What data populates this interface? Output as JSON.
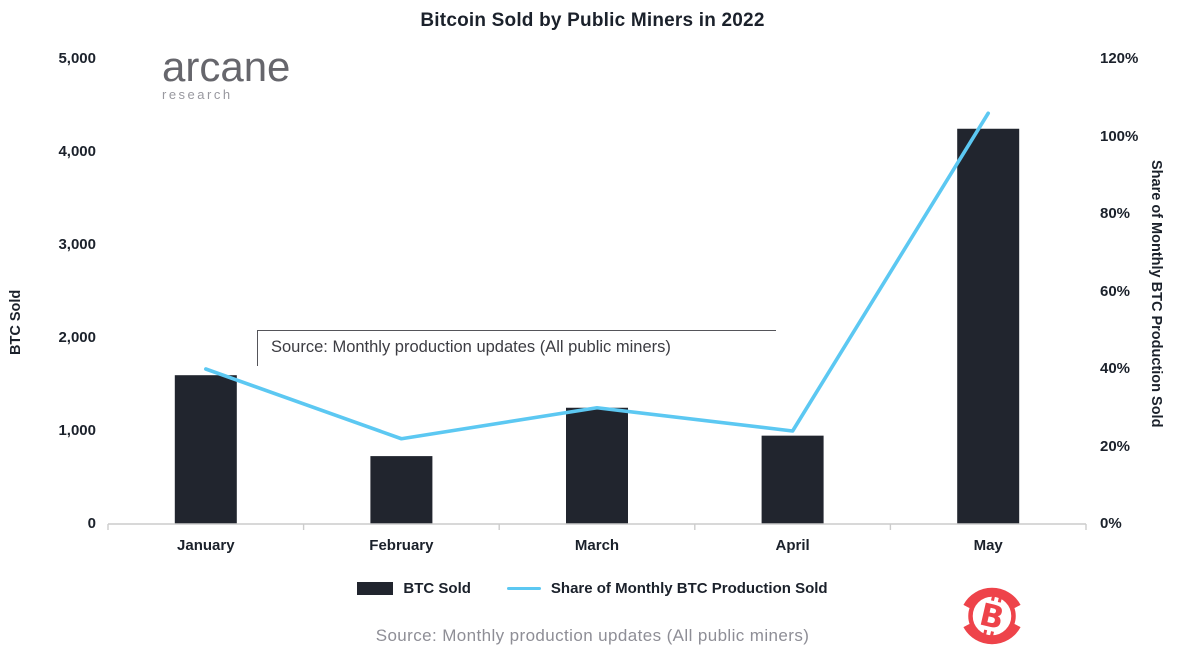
{
  "title": "Bitcoin Sold by Public Miners in 2022",
  "logo": {
    "name": "arcane",
    "sub": "research"
  },
  "annotation": {
    "text": "Source: Monthly production updates (All public miners)"
  },
  "footer": {
    "source": "Source: Monthly production updates (All public miners)"
  },
  "legend": [
    {
      "label": "BTC Sold",
      "type": "bar"
    },
    {
      "label": "Share of Monthly BTC Production Sold",
      "type": "line"
    }
  ],
  "icons": {
    "bitcoin_badge": "bitcoin-circular-arrows-icon"
  },
  "colors": {
    "bar": "#21252e",
    "line": "#5cc8f2",
    "text_dark": "#1b212b",
    "axis_grey": "#cccccc",
    "annotation_border": "#55555a",
    "annotation_text": "#3c3c42",
    "footer_grey": "#8e8e96",
    "logo_grey": "#66666c",
    "logo_sub_grey": "#98989f",
    "bitcoin_red": "#ee434a"
  },
  "chart_data": {
    "type": "bar+line combo",
    "title": "Bitcoin Sold by Public Miners in 2022",
    "categories": [
      "January",
      "February",
      "March",
      "April",
      "May"
    ],
    "series": [
      {
        "name": "BTC Sold",
        "type": "bar",
        "axis": "left",
        "values": [
          1600,
          730,
          1250,
          950,
          4250
        ]
      },
      {
        "name": "Share of Monthly BTC Production Sold",
        "type": "line",
        "axis": "right",
        "values": [
          40,
          22,
          30,
          24,
          106
        ]
      }
    ],
    "left_axis": {
      "label": "BTC Sold",
      "min": 0,
      "max": 5000,
      "ticks": [
        "5,000",
        "4,000",
        "3,000",
        "2,000",
        "1,000",
        "0"
      ]
    },
    "right_axis": {
      "label": "Share of Monthly BTC Production Sold",
      "min": 0,
      "max": 120,
      "ticks": [
        "120%",
        "100%",
        "80%",
        "60%",
        "40%",
        "20%",
        "0%"
      ]
    },
    "grid": false,
    "legend_position": "bottom"
  }
}
